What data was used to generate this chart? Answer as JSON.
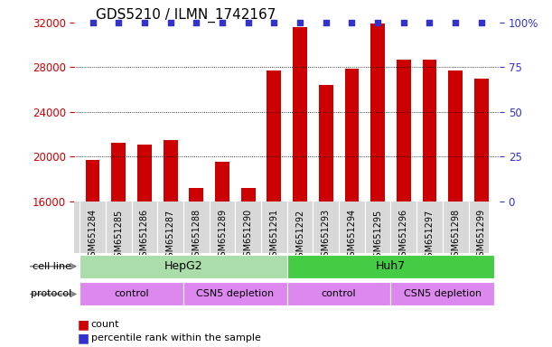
{
  "title": "GDS5210 / ILMN_1742167",
  "samples": [
    "GSM651284",
    "GSM651285",
    "GSM651286",
    "GSM651287",
    "GSM651288",
    "GSM651289",
    "GSM651290",
    "GSM651291",
    "GSM651292",
    "GSM651293",
    "GSM651294",
    "GSM651295",
    "GSM651296",
    "GSM651297",
    "GSM651298",
    "GSM651299"
  ],
  "counts": [
    19700,
    21200,
    21100,
    21500,
    17200,
    19500,
    17200,
    27700,
    31600,
    26400,
    27900,
    31900,
    28700,
    28700,
    27700,
    27000
  ],
  "bar_color": "#cc0000",
  "dot_color": "#3333cc",
  "ylim_left": [
    16000,
    32000
  ],
  "ylim_right": [
    0,
    100
  ],
  "yticks_left": [
    16000,
    20000,
    24000,
    28000,
    32000
  ],
  "yticks_right": [
    0,
    25,
    50,
    75,
    100
  ],
  "cell_line_labels": [
    "HepG2",
    "Huh7"
  ],
  "cell_line_ranges": [
    [
      0,
      8
    ],
    [
      8,
      16
    ]
  ],
  "cell_line_colors": [
    "#aaddaa",
    "#44cc44"
  ],
  "protocol_labels": [
    "control",
    "CSN5 depletion",
    "control",
    "CSN5 depletion"
  ],
  "protocol_ranges": [
    [
      0,
      4
    ],
    [
      4,
      8
    ],
    [
      8,
      12
    ],
    [
      12,
      16
    ]
  ],
  "protocol_color": "#dd88ee",
  "axis_color_left": "#cc0000",
  "axis_color_right": "#3333cc",
  "title_fontsize": 11,
  "tick_fontsize": 8.5,
  "bar_label_fontsize": 7,
  "row_label_fontsize": 8,
  "cell_line_fontsize": 9,
  "protocol_fontsize": 8,
  "legend_fontsize": 8
}
